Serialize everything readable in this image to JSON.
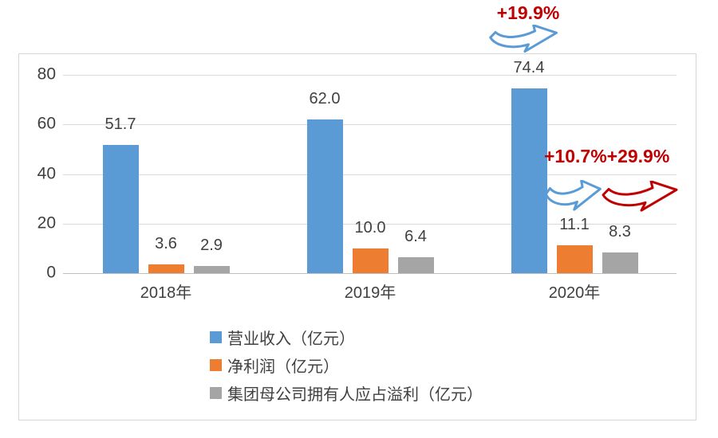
{
  "chart_data": {
    "type": "bar",
    "title": "",
    "categories": [
      "2018年",
      "2019年",
      "2020年"
    ],
    "series": [
      {
        "name": "营业收入（亿元）",
        "color": "#5B9BD5",
        "values": [
          51.7,
          62.0,
          74.4
        ],
        "labels": [
          "51.7",
          "62.0",
          "74.4"
        ]
      },
      {
        "name": "净利润（亿元）",
        "color": "#ED7D31",
        "values": [
          3.6,
          10.0,
          11.1
        ],
        "labels": [
          "3.6",
          "10.0",
          "11.1"
        ]
      },
      {
        "name": "集团母公司拥有人应占溢利（亿元）",
        "color": "#A5A5A5",
        "values": [
          2.9,
          6.4,
          8.3
        ],
        "labels": [
          "2.9",
          "6.4",
          "8.3"
        ]
      }
    ],
    "y_axis": {
      "min": 0,
      "max": 80,
      "step": 20,
      "ticks": [
        "0",
        "20",
        "40",
        "60",
        "80"
      ]
    },
    "grid": true,
    "legend_position": "bottom-left"
  },
  "annotations": {
    "revenue_growth": {
      "label": "+19.9%",
      "arrow": "blue"
    },
    "net_profit_growth": {
      "label": "+10.7%",
      "arrow": "blue"
    },
    "attributable_profit_growth": {
      "label": "+29.9%",
      "arrow": "red"
    }
  },
  "colors": {
    "bar_blue": "#5B9BD5",
    "bar_orange": "#ED7D31",
    "bar_gray": "#A5A5A5",
    "annotation_red": "#C00000",
    "arrow_blue": "#5B9BD5",
    "arrow_red": "#C00000",
    "gridline": "#D9D9D9",
    "axis_line": "#BFBFBF",
    "text": "#404040"
  }
}
